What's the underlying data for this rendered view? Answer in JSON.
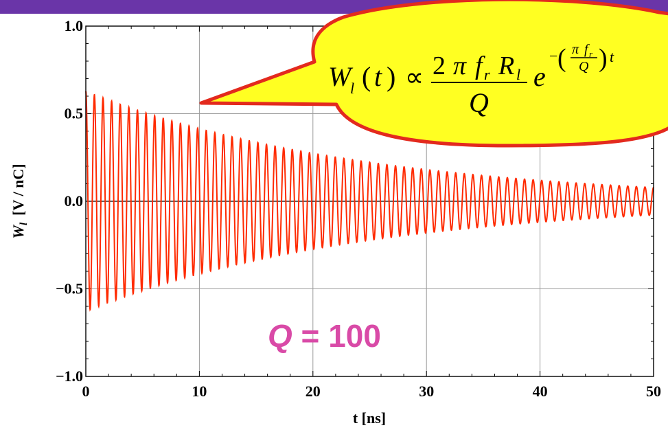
{
  "colors": {
    "top_bar": "#6a35a8",
    "trace": "#ff2a00",
    "grid": "#9a9a9a",
    "callout_fill": "#ffff22",
    "callout_stroke": "#e32a1e",
    "annotation": "#d94aa7"
  },
  "chart_data": {
    "type": "line",
    "xlabel": "t [ns]",
    "ylabel_main": "W",
    "ylabel_sub": "l",
    "ylabel_unit": "[V / nC]",
    "xlim": [
      0,
      50
    ],
    "ylim": [
      -1.0,
      1.0
    ],
    "x_ticks": [
      0,
      10,
      20,
      30,
      40,
      50
    ],
    "x_tick_labels": [
      "0",
      "10",
      "20",
      "30",
      "40",
      "50"
    ],
    "y_ticks": [
      -1.0,
      -0.5,
      0.0,
      0.5,
      1.0
    ],
    "y_tick_labels": [
      "−1.0",
      "−0.5",
      "0.0",
      "0.5",
      "1.0"
    ],
    "grid": true,
    "annotation": "Q = 100",
    "annotation_q": "Q",
    "annotation_rest": " = 100",
    "series": [
      {
        "function": "A * cos(2*pi*f_r*t) * exp(-(pi*f_r/Q)*t)",
        "amplitude_at_t0": 0.628,
        "f_r_GHz": 1.32,
        "Q": 100,
        "t_range_ns": [
          0,
          50
        ]
      }
    ],
    "callout_formula": {
      "W": "W",
      "l": "l",
      "lparen": "(",
      "t": "t",
      "rparen": ")",
      "prop": "∝",
      "num_2": "2",
      "pi": "π",
      "f": "f",
      "r": "r",
      "R": "R",
      "l2": "l",
      "den": "Q",
      "e": "e",
      "minus": "−",
      "exp_pi": "π",
      "exp_f": "f",
      "exp_r": "r",
      "exp_Q": "Q",
      "exp_lparen": "(",
      "exp_rparen": ")",
      "exp_t": "t"
    }
  }
}
